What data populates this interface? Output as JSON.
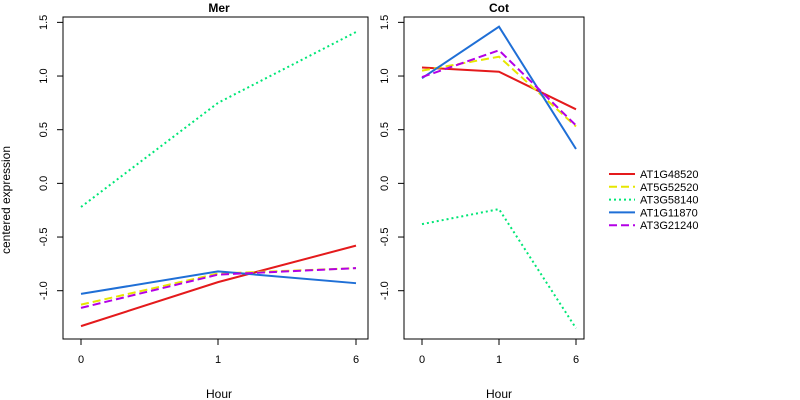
{
  "chart_data": {
    "type": "line",
    "ylabel": "centered expression",
    "legend": {
      "placement": "right",
      "entries": [
        {
          "name": "AT1G48520",
          "color": "#e41a1c",
          "dash": "solid"
        },
        {
          "name": "AT5G52520",
          "color": "#e6e600",
          "dash": "dashed"
        },
        {
          "name": "AT3G58140",
          "color": "#00e676",
          "dash": "dotted"
        },
        {
          "name": "AT1G11870",
          "color": "#1f6fd6",
          "dash": "solid"
        },
        {
          "name": "AT3G21240",
          "color": "#b400e6",
          "dash": "dashed"
        }
      ]
    },
    "panels": [
      {
        "title": "Mer",
        "xlabel": "Hour",
        "x": [
          "0",
          "1",
          "6"
        ],
        "ylim": [
          -1.45,
          1.55
        ],
        "yticks": [
          -1.0,
          -0.5,
          0.0,
          0.5,
          1.0,
          1.5
        ],
        "ytick_labels": [
          "-1.0",
          "-0.5",
          "0.0",
          "0.5",
          "1.0",
          "1.5"
        ],
        "series": [
          {
            "name": "AT1G48520",
            "values": [
              -1.33,
              -0.92,
              -0.58
            ]
          },
          {
            "name": "AT5G52520",
            "values": [
              -1.13,
              -0.84,
              -0.79
            ]
          },
          {
            "name": "AT3G58140",
            "values": [
              -0.22,
              0.75,
              1.41
            ]
          },
          {
            "name": "AT1G11870",
            "values": [
              -1.03,
              -0.82,
              -0.93
            ]
          },
          {
            "name": "AT3G21240",
            "values": [
              -1.16,
              -0.85,
              -0.79
            ]
          }
        ]
      },
      {
        "title": "Cot",
        "xlabel": "Hour",
        "x": [
          "0",
          "1",
          "6"
        ],
        "ylim": [
          -1.45,
          1.55
        ],
        "yticks": [
          -1.0,
          -0.5,
          0.0,
          0.5,
          1.0,
          1.5
        ],
        "ytick_labels": [
          "-1.0",
          "-0.5",
          "0.0",
          "0.5",
          "1.0",
          "1.5"
        ],
        "series": [
          {
            "name": "AT1G48520",
            "values": [
              1.08,
              1.04,
              0.69
            ]
          },
          {
            "name": "AT5G52520",
            "values": [
              1.05,
              1.18,
              0.53
            ]
          },
          {
            "name": "AT3G58140",
            "values": [
              -0.38,
              -0.24,
              -1.35
            ]
          },
          {
            "name": "AT1G11870",
            "values": [
              0.98,
              1.46,
              0.32
            ]
          },
          {
            "name": "AT3G21240",
            "values": [
              0.99,
              1.24,
              0.54
            ]
          }
        ]
      }
    ]
  }
}
